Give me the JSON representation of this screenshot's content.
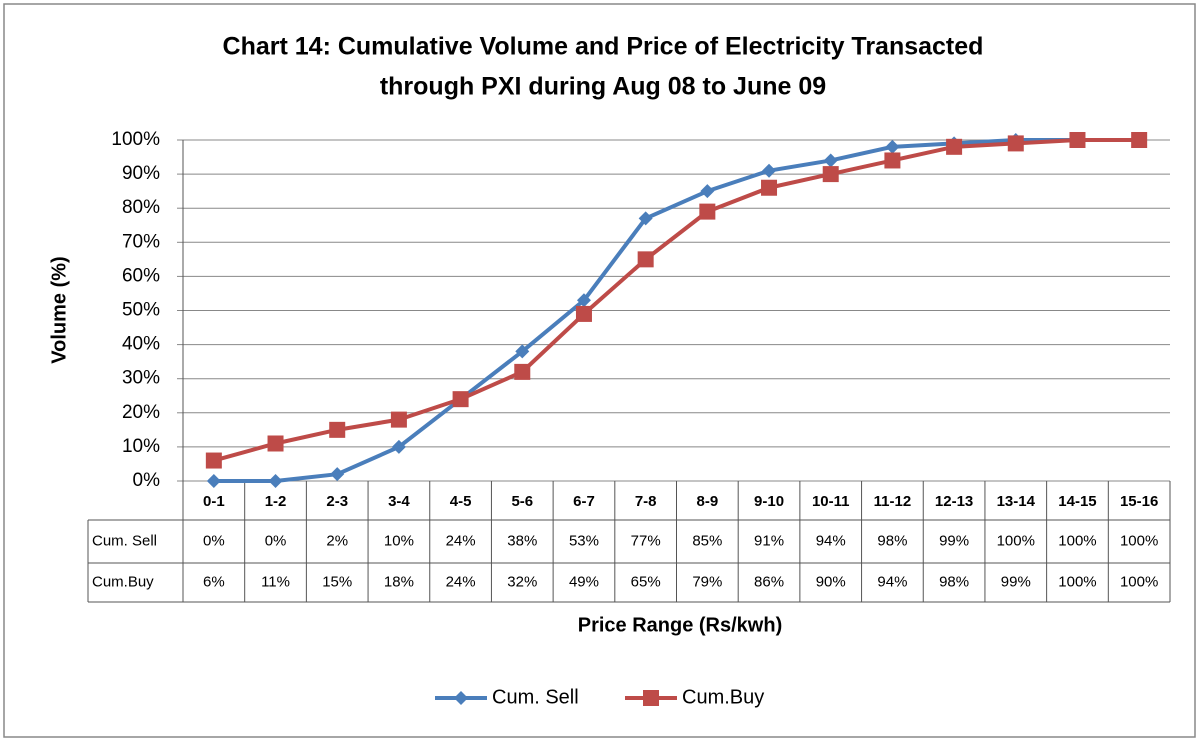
{
  "chart_data": {
    "type": "line",
    "title": [
      "Chart 14: Cumulative Volume and Price of Electricity Transacted",
      "through PXI during Aug 08 to June 09"
    ],
    "y_label": "Volume (%)",
    "x_label": "Price Range (Rs/kwh)",
    "categories": [
      "0-1",
      "1-2",
      "2-3",
      "3-4",
      "4-5",
      "5-6",
      "6-7",
      "7-8",
      "8-9",
      "9-10",
      "10-11",
      "11-12",
      "12-13",
      "13-14",
      "14-15",
      "15-16"
    ],
    "series": [
      {
        "name": "Cum. Sell",
        "color": "#4a7ebb",
        "marker": "diamond",
        "values": [
          0,
          0,
          2,
          10,
          24,
          38,
          53,
          77,
          85,
          91,
          94,
          98,
          99,
          100,
          100,
          100
        ],
        "value_labels": [
          "0%",
          "0%",
          "2%",
          "10%",
          "24%",
          "38%",
          "53%",
          "77%",
          "85%",
          "91%",
          "94%",
          "98%",
          "99%",
          "100%",
          "100%",
          "100%"
        ]
      },
      {
        "name": "Cum.Buy",
        "color": "#be4b48",
        "marker": "square",
        "values": [
          6,
          11,
          15,
          18,
          24,
          32,
          49,
          65,
          79,
          86,
          90,
          94,
          98,
          99,
          100,
          100
        ],
        "value_labels": [
          "6%",
          "11%",
          "15%",
          "18%",
          "24%",
          "32%",
          "49%",
          "65%",
          "79%",
          "86%",
          "90%",
          "94%",
          "98%",
          "99%",
          "100%",
          "100%"
        ]
      }
    ],
    "ylim": [
      0,
      100
    ],
    "yticks": [
      {
        "value": 0,
        "label": "0%"
      },
      {
        "value": 10,
        "label": "10%"
      },
      {
        "value": 20,
        "label": "20%"
      },
      {
        "value": 30,
        "label": "30%"
      },
      {
        "value": 40,
        "label": "40%"
      },
      {
        "value": 50,
        "label": "50%"
      },
      {
        "value": 60,
        "label": "60%"
      },
      {
        "value": 70,
        "label": "70%"
      },
      {
        "value": 80,
        "label": "80%"
      },
      {
        "value": 90,
        "label": "90%"
      },
      {
        "value": 100,
        "label": "100%"
      }
    ],
    "grid": true,
    "legend": "bottom"
  }
}
